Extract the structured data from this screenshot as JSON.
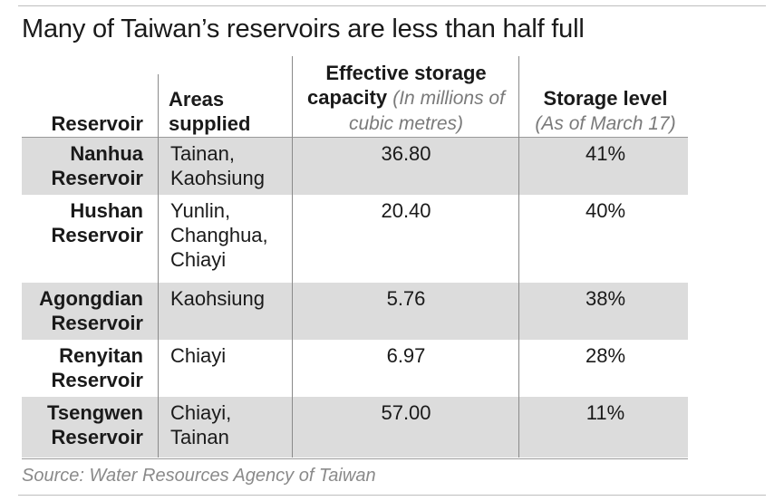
{
  "chart_data": {
    "type": "table",
    "title": "Many of Taiwan’s reservoirs are less than half full",
    "columns": [
      {
        "label": "Reservoir",
        "sublabel": ""
      },
      {
        "label": "Areas supplied",
        "sublabel": ""
      },
      {
        "label": "Effective storage capacity",
        "sublabel": "(In millions of cubic metres)"
      },
      {
        "label": "Storage level",
        "sublabel": "(As of March 17)"
      }
    ],
    "rows": [
      {
        "reservoir": "Nanhua Reservoir",
        "areas": "Tainan, Kaohsiung",
        "capacity": "36.80",
        "level": "41%"
      },
      {
        "reservoir": "Hushan Reservoir",
        "areas": "Yunlin, Changhua, Chiayi",
        "capacity": "20.40",
        "level": "40%"
      },
      {
        "reservoir": "Agongdian Reservoir",
        "areas": "Kaohsiung",
        "capacity": "5.76",
        "level": "38%"
      },
      {
        "reservoir": "Renyitan Reservoir",
        "areas": "Chiayi",
        "capacity": "6.97",
        "level": "28%"
      },
      {
        "reservoir": "Tsengwen Reservoir",
        "areas": "Chiayi, Tainan",
        "capacity": "57.00",
        "level": "11%"
      }
    ],
    "source": "Source: Water Resources Agency of Taiwan"
  }
}
